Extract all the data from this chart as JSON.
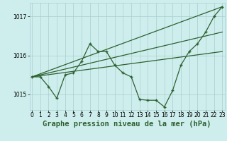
{
  "background_color": "#ceeeed",
  "grid_color": "#a8cece",
  "line_color": "#2d6030",
  "title": "Graphe pression niveau de la mer (hPa)",
  "xlim": [
    -0.3,
    23.3
  ],
  "ylim": [
    1014.6,
    1017.35
  ],
  "yticks": [
    1015,
    1016,
    1017
  ],
  "xticks": [
    0,
    1,
    2,
    3,
    4,
    5,
    6,
    7,
    8,
    9,
    10,
    11,
    12,
    13,
    14,
    15,
    16,
    17,
    18,
    19,
    20,
    21,
    22,
    23
  ],
  "line_trend_high": {
    "x": [
      0,
      23
    ],
    "y": [
      1015.45,
      1017.25
    ]
  },
  "line_trend_low": {
    "x": [
      0,
      23
    ],
    "y": [
      1015.45,
      1016.1
    ]
  },
  "line_trend_mid": {
    "x": [
      0,
      23
    ],
    "y": [
      1015.45,
      1016.6
    ]
  },
  "line_wiggly": {
    "x": [
      0,
      1,
      2,
      3,
      4,
      5,
      6,
      7,
      8,
      9,
      10,
      11,
      12,
      13,
      14,
      15,
      16,
      17,
      18,
      19,
      20,
      21,
      22,
      23
    ],
    "y": [
      1015.45,
      1015.45,
      1015.2,
      1014.9,
      1015.5,
      1015.55,
      1015.85,
      1016.3,
      1016.1,
      1016.1,
      1015.75,
      1015.55,
      1015.45,
      1014.87,
      1014.85,
      1014.85,
      1014.68,
      1015.1,
      1015.75,
      1016.1,
      1016.3,
      1016.6,
      1017.0,
      1017.25
    ]
  },
  "tick_fontsize": 5.5,
  "title_fontsize": 7.5,
  "marker": "+",
  "markersize": 3.5,
  "markeredgewidth": 1.0,
  "linewidth": 0.9
}
